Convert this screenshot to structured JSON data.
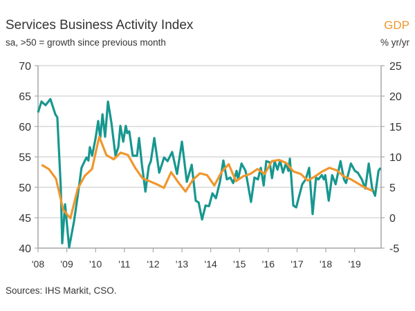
{
  "chart_data": {
    "type": "line",
    "title": "Services Business Activity Index",
    "subtitle": "sa, >50 = growth since previous month",
    "right_axis_title": "GDP",
    "right_axis_unit": "% yr/yr",
    "source": "Sources: IHS Markit, CSO.",
    "xlim": [
      2008,
      2019.92
    ],
    "x_ticks": [
      2008,
      2009,
      2010,
      2011,
      2012,
      2013,
      2014,
      2015,
      2016,
      2017,
      2018,
      2019
    ],
    "x_tick_labels": [
      "'08",
      "'09",
      "'10",
      "'11",
      "'12",
      "'13",
      "'14",
      "'15",
      "'16",
      "'17",
      "'18",
      "'19"
    ],
    "ylim_left": [
      40,
      70
    ],
    "y_ticks_left": [
      "40",
      "45",
      "50",
      "55",
      "60",
      "65",
      "70"
    ],
    "ylim_right": [
      -5,
      25
    ],
    "y_ticks_right": [
      "-5",
      "0",
      "5",
      "10",
      "15",
      "20",
      "25"
    ],
    "grid": "horizontal",
    "colors": {
      "pmi": "#17978f",
      "gdp": "#f0962c",
      "grid": "#d9d9d9",
      "axis": "#a6a6a6"
    },
    "series": [
      {
        "axis": "left",
        "color": "#17978f",
        "points": [
          [
            2008.0,
            62.3
          ],
          [
            2008.12,
            64.1
          ],
          [
            2008.26,
            63.5
          ],
          [
            2008.43,
            64.5
          ],
          [
            2008.6,
            62.0
          ],
          [
            2008.67,
            61.5
          ],
          [
            2008.79,
            50.0
          ],
          [
            2008.84,
            40.8
          ],
          [
            2008.94,
            47.2
          ],
          [
            2009.08,
            40.1
          ],
          [
            2009.25,
            44.4
          ],
          [
            2009.39,
            49.0
          ],
          [
            2009.51,
            53.2
          ],
          [
            2009.68,
            54.9
          ],
          [
            2009.75,
            54.4
          ],
          [
            2009.8,
            56.6
          ],
          [
            2009.88,
            55.2
          ],
          [
            2010.0,
            58.1
          ],
          [
            2010.09,
            60.9
          ],
          [
            2010.16,
            58.1
          ],
          [
            2010.24,
            62.0
          ],
          [
            2010.33,
            58.3
          ],
          [
            2010.43,
            64.1
          ],
          [
            2010.55,
            60.6
          ],
          [
            2010.69,
            55.2
          ],
          [
            2010.79,
            56.6
          ],
          [
            2010.86,
            60.1
          ],
          [
            2010.96,
            57.5
          ],
          [
            2011.05,
            60.1
          ],
          [
            2011.1,
            58.9
          ],
          [
            2011.17,
            59.2
          ],
          [
            2011.29,
            55.2
          ],
          [
            2011.44,
            55.2
          ],
          [
            2011.51,
            58.1
          ],
          [
            2011.61,
            53.7
          ],
          [
            2011.73,
            49.3
          ],
          [
            2011.85,
            53.5
          ],
          [
            2011.92,
            54.3
          ],
          [
            2012.04,
            58.1
          ],
          [
            2012.21,
            52.4
          ],
          [
            2012.38,
            54.9
          ],
          [
            2012.5,
            54.3
          ],
          [
            2012.66,
            55.8
          ],
          [
            2012.83,
            52.2
          ],
          [
            2013.0,
            57.5
          ],
          [
            2013.17,
            50.9
          ],
          [
            2013.34,
            53.7
          ],
          [
            2013.48,
            47.8
          ],
          [
            2013.58,
            47.5
          ],
          [
            2013.7,
            44.7
          ],
          [
            2013.82,
            47.0
          ],
          [
            2013.94,
            46.9
          ],
          [
            2014.06,
            49.0
          ],
          [
            2014.18,
            48.2
          ],
          [
            2014.32,
            50.9
          ],
          [
            2014.44,
            54.4
          ],
          [
            2014.56,
            51.3
          ],
          [
            2014.68,
            51.6
          ],
          [
            2014.78,
            50.7
          ],
          [
            2014.9,
            52.7
          ],
          [
            2014.95,
            51.3
          ],
          [
            2015.07,
            53.9
          ],
          [
            2015.21,
            52.7
          ],
          [
            2015.4,
            47.6
          ],
          [
            2015.52,
            51.6
          ],
          [
            2015.64,
            51.3
          ],
          [
            2015.74,
            53.2
          ],
          [
            2015.84,
            50.3
          ],
          [
            2015.93,
            54.3
          ],
          [
            2016.05,
            54.1
          ],
          [
            2016.13,
            51.5
          ],
          [
            2016.22,
            54.3
          ],
          [
            2016.32,
            52.9
          ],
          [
            2016.41,
            54.4
          ],
          [
            2016.51,
            52.4
          ],
          [
            2016.61,
            53.9
          ],
          [
            2016.7,
            52.7
          ],
          [
            2016.75,
            54.7
          ],
          [
            2016.87,
            47.0
          ],
          [
            2016.97,
            46.7
          ],
          [
            2017.18,
            50.5
          ],
          [
            2017.3,
            51.3
          ],
          [
            2017.42,
            53.2
          ],
          [
            2017.54,
            45.6
          ],
          [
            2017.66,
            51.6
          ],
          [
            2017.74,
            51.3
          ],
          [
            2017.86,
            52.0
          ],
          [
            2017.93,
            51.3
          ],
          [
            2017.98,
            52.0
          ],
          [
            2018.1,
            47.8
          ],
          [
            2018.22,
            52.0
          ],
          [
            2018.34,
            50.5
          ],
          [
            2018.51,
            54.3
          ],
          [
            2018.63,
            51.3
          ],
          [
            2018.7,
            50.7
          ],
          [
            2018.87,
            53.9
          ],
          [
            2019.01,
            52.7
          ],
          [
            2019.11,
            52.4
          ],
          [
            2019.25,
            51.3
          ],
          [
            2019.37,
            49.8
          ],
          [
            2019.49,
            53.9
          ],
          [
            2019.61,
            49.8
          ],
          [
            2019.71,
            48.6
          ],
          [
            2019.83,
            52.7
          ],
          [
            2019.9,
            53.2
          ]
        ]
      },
      {
        "axis": "right",
        "color": "#f0962c",
        "quarters": [
          "2008 Q1",
          "2008 Q2",
          "2008 Q3",
          "2008 Q4",
          "2009 Q1",
          "2009 Q2",
          "2009 Q3",
          "2009 Q4",
          "2010 Q1",
          "2010 Q2",
          "2010 Q3",
          "2010 Q4",
          "2011 Q1",
          "2011 Q2",
          "2011 Q3",
          "2011 Q4",
          "2012 Q1",
          "2012 Q2",
          "2012 Q3",
          "2012 Q4",
          "2013 Q1",
          "2013 Q2",
          "2013 Q3",
          "2013 Q4",
          "2014 Q1",
          "2014 Q2",
          "2014 Q3",
          "2014 Q4",
          "2015 Q1",
          "2015 Q2",
          "2015 Q3",
          "2015 Q4",
          "2016 Q1",
          "2016 Q2",
          "2016 Q3",
          "2016 Q4",
          "2017 Q1",
          "2017 Q2",
          "2017 Q3",
          "2017 Q4",
          "2018 Q1",
          "2018 Q2",
          "2018 Q3",
          "2018 Q4",
          "2019 Q1",
          "2019 Q2",
          "2019 Q3"
        ],
        "values": [
          8.7,
          8.0,
          6.4,
          1.3,
          -0.1,
          4.7,
          6.9,
          8.0,
          13.3,
          10.3,
          9.6,
          10.7,
          10.3,
          8.2,
          6.5,
          6.0,
          5.5,
          4.9,
          7.5,
          5.8,
          4.3,
          6.2,
          7.3,
          7.0,
          5.3,
          7.5,
          8.8,
          6.0,
          6.8,
          7.2,
          8.0,
          7.2,
          9.3,
          9.5,
          9.0,
          7.6,
          7.2,
          6.1,
          6.8,
          7.6,
          8.2,
          7.8,
          6.8,
          6.3,
          5.6,
          4.9,
          4.4
        ]
      }
    ]
  }
}
